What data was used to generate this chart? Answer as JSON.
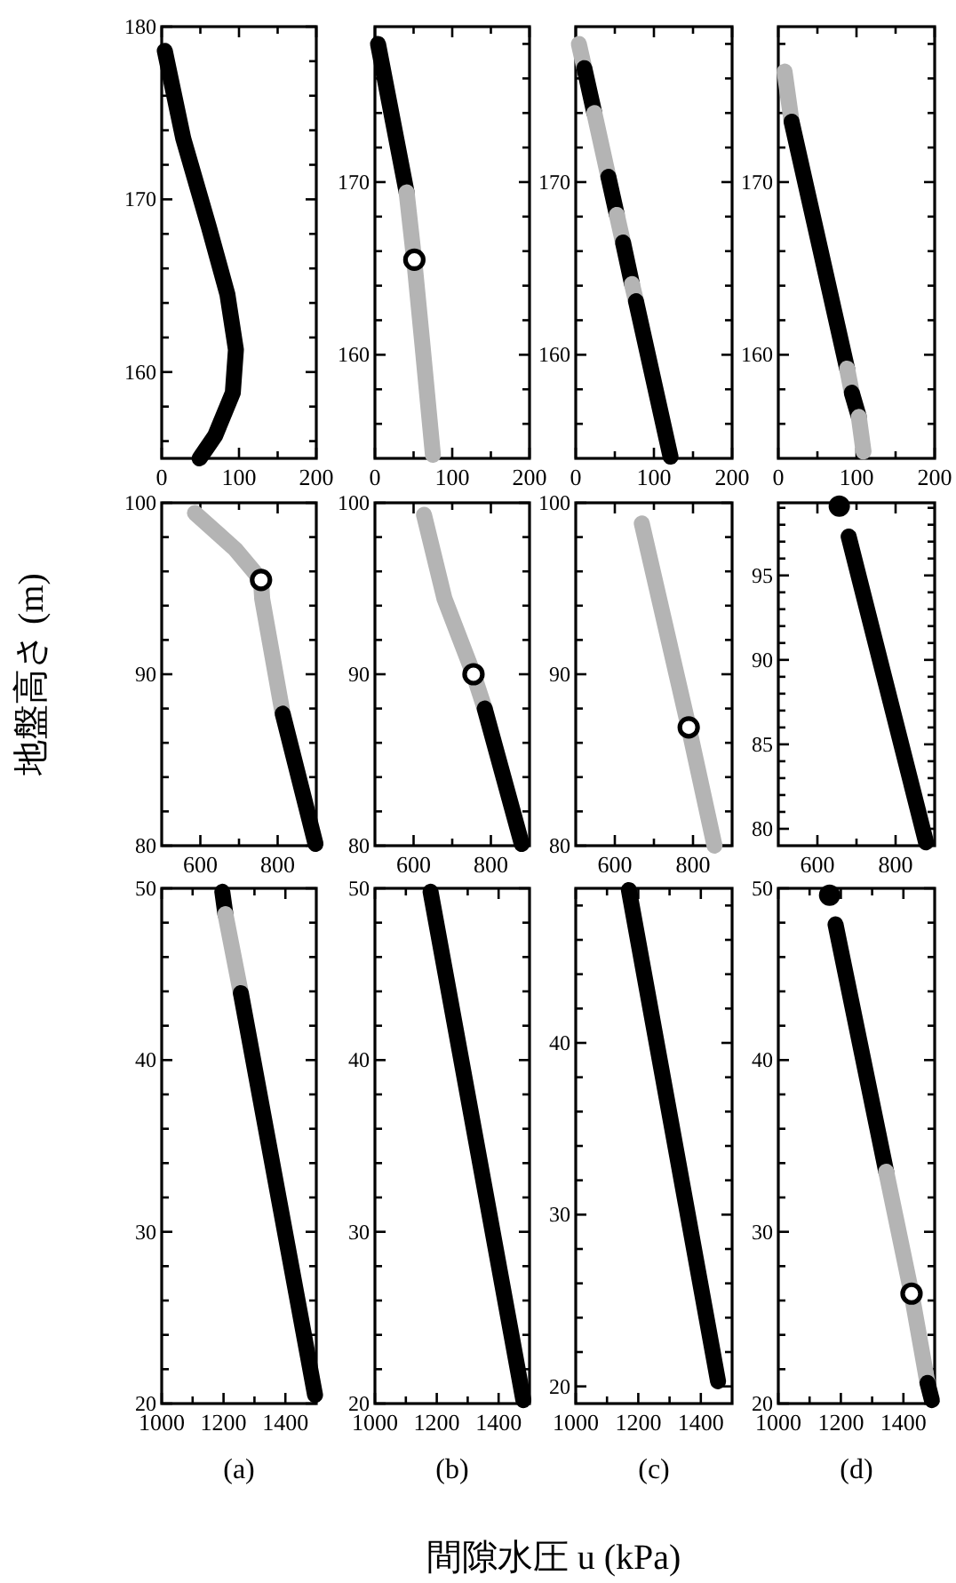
{
  "chart_data": [
    {
      "type": "line",
      "xlim": [
        0,
        200
      ],
      "ylim": [
        155,
        180
      ],
      "xticks": [
        0,
        {
          "value": 50,
          "label": null
        },
        100,
        {
          "value": 150,
          "label": null
        },
        200
      ],
      "yticks": [
        {
          "value": 156,
          "label": null
        },
        {
          "value": 158,
          "label": null
        },
        160,
        {
          "value": 162,
          "label": null
        },
        {
          "value": 164,
          "label": null
        },
        {
          "value": 166,
          "label": null
        },
        {
          "value": 168,
          "label": null
        },
        170,
        {
          "value": 172,
          "label": null
        },
        {
          "value": 174,
          "label": null
        },
        {
          "value": 176,
          "label": null
        },
        {
          "value": 178,
          "label": null
        },
        180
      ],
      "series": [
        {
          "color": "#000000",
          "x": [
            4,
            28,
            61,
            85,
            96,
            92,
            69,
            49
          ],
          "values": [
            178.6,
            173.5,
            168.4,
            164.5,
            161.3,
            158.8,
            156.3,
            155.0
          ]
        }
      ]
    },
    {
      "type": "line",
      "xlim": [
        0,
        200
      ],
      "ylim": [
        154,
        179
      ],
      "xticks": [
        0,
        {
          "value": 50,
          "label": null
        },
        100,
        {
          "value": 150,
          "label": null
        },
        200
      ],
      "yticks": [
        {
          "value": 156,
          "label": null
        },
        {
          "value": 158,
          "label": null
        },
        160,
        {
          "value": 162,
          "label": null
        },
        {
          "value": 164,
          "label": null
        },
        {
          "value": 166,
          "label": null
        },
        {
          "value": 168,
          "label": null
        },
        170,
        {
          "value": 172,
          "label": null
        },
        {
          "value": 174,
          "label": null
        },
        {
          "value": 176,
          "label": null
        },
        {
          "value": 178,
          "label": null
        }
      ],
      "series": [
        {
          "color": "#000000",
          "x": [
            4,
            41
          ],
          "values": [
            178.0,
            169.4
          ]
        },
        {
          "color": "#b4b4b4",
          "x": [
            41,
            51,
            61,
            75
          ],
          "values": [
            169.4,
            165.4,
            160.8,
            154.2
          ]
        },
        {
          "type": "scatter",
          "marker": "circle",
          "color": "#000000",
          "x": [
            51
          ],
          "values": [
            165.5
          ]
        }
      ]
    },
    {
      "type": "line",
      "xlim": [
        0,
        200
      ],
      "ylim": [
        154,
        179
      ],
      "xticks": [
        0,
        {
          "value": 50,
          "label": null
        },
        100,
        {
          "value": 150,
          "label": null
        },
        200
      ],
      "yticks": [
        {
          "value": 156,
          "label": null
        },
        {
          "value": 158,
          "label": null
        },
        160,
        {
          "value": 162,
          "label": null
        },
        {
          "value": 164,
          "label": null
        },
        {
          "value": 166,
          "label": null
        },
        {
          "value": 168,
          "label": null
        },
        170,
        {
          "value": 172,
          "label": null
        },
        {
          "value": 174,
          "label": null
        },
        {
          "value": 176,
          "label": null
        },
        {
          "value": 178,
          "label": null
        }
      ],
      "series": [
        {
          "color": "#b4b4b4",
          "x": [
            4,
            11.0
          ],
          "values": [
            178.0,
            176.6
          ]
        },
        {
          "color": "#000000",
          "x": [
            11.0,
            23.8
          ],
          "values": [
            176.6,
            174.0
          ]
        },
        {
          "color": "#b4b4b4",
          "x": [
            23.8,
            41.8
          ],
          "values": [
            174.0,
            170.3
          ]
        },
        {
          "color": "#000000",
          "x": [
            41.8,
            52.6
          ],
          "values": [
            170.3,
            168.1
          ]
        },
        {
          "color": "#b4b4b4",
          "x": [
            52.6,
            60.5
          ],
          "values": [
            168.1,
            166.5
          ]
        },
        {
          "color": "#000000",
          "x": [
            60.5,
            71.9
          ],
          "values": [
            166.5,
            164.1
          ]
        },
        {
          "color": "#b4b4b4",
          "x": [
            71.9,
            77.1
          ],
          "values": [
            164.1,
            163.1
          ]
        },
        {
          "color": "#000000",
          "x": [
            77.1,
            121.2
          ],
          "values": [
            163.1,
            154.1
          ]
        }
      ]
    },
    {
      "type": "line",
      "xlim": [
        0,
        200
      ],
      "ylim": [
        154,
        179
      ],
      "xticks": [
        0,
        {
          "value": 50,
          "label": null
        },
        100,
        {
          "value": 150,
          "label": null
        },
        200
      ],
      "yticks": [
        {
          "value": 156,
          "label": null
        },
        {
          "value": 158,
          "label": null
        },
        160,
        {
          "value": 162,
          "label": null
        },
        {
          "value": 164,
          "label": null
        },
        {
          "value": 166,
          "label": null
        },
        {
          "value": 168,
          "label": null
        },
        170,
        {
          "value": 172,
          "label": null
        },
        {
          "value": 174,
          "label": null
        },
        {
          "value": 176,
          "label": null
        },
        {
          "value": 178,
          "label": null
        }
      ],
      "series": [
        {
          "color": "#b4b4b4",
          "x": [
            8,
            17
          ],
          "values": [
            176.4,
            173.5
          ]
        },
        {
          "color": "#000000",
          "x": [
            17,
            88
          ],
          "values": [
            173.5,
            159.2
          ]
        },
        {
          "color": "#b4b4b4",
          "x": [
            88,
            94
          ],
          "values": [
            159.2,
            157.8
          ]
        },
        {
          "color": "#000000",
          "x": [
            94,
            103
          ],
          "values": [
            157.8,
            156.4
          ]
        },
        {
          "color": "#b4b4b4",
          "x": [
            103,
            109
          ],
          "values": [
            156.4,
            154.4
          ]
        }
      ]
    },
    {
      "type": "line",
      "xlim": [
        500,
        900
      ],
      "ylim": [
        80,
        100
      ],
      "ylabel": "地盤高さ (m)",
      "xticks": [
        600,
        {
          "value": 700,
          "label": null
        },
        800
      ],
      "yticks": [
        80,
        {
          "value": 82,
          "label": null
        },
        {
          "value": 84,
          "label": null
        },
        {
          "value": 86,
          "label": null
        },
        {
          "value": 88,
          "label": null
        },
        90,
        {
          "value": 92,
          "label": null
        },
        {
          "value": 94,
          "label": null
        },
        {
          "value": 96,
          "label": null
        },
        {
          "value": 98,
          "label": null
        },
        100
      ],
      "series": [
        {
          "color": "#b4b4b4",
          "x": [
            586,
            690,
            757,
            760,
            813
          ],
          "values": [
            99.4,
            97.3,
            95.5,
            94.4,
            87.7
          ]
        },
        {
          "color": "#000000",
          "x": [
            813,
            898
          ],
          "values": [
            87.7,
            80.1
          ]
        },
        {
          "type": "scatter",
          "marker": "circle",
          "color": "#000000",
          "x": [
            757
          ],
          "values": [
            95.5
          ]
        }
      ]
    },
    {
      "type": "line",
      "xlim": [
        500,
        900
      ],
      "ylim": [
        80,
        100
      ],
      "xticks": [
        600,
        {
          "value": 700,
          "label": null
        },
        800
      ],
      "yticks": [
        80,
        {
          "value": 82,
          "label": null
        },
        {
          "value": 84,
          "label": null
        },
        {
          "value": 86,
          "label": null
        },
        {
          "value": 88,
          "label": null
        },
        90,
        {
          "value": 92,
          "label": null
        },
        {
          "value": 94,
          "label": null
        },
        {
          "value": 96,
          "label": null
        },
        {
          "value": 98,
          "label": null
        },
        100
      ],
      "series": [
        {
          "color": "#b4b4b4",
          "x": [
            627,
            680,
            755,
            784
          ],
          "values": [
            99.3,
            94.4,
            90.0,
            88.0
          ]
        },
        {
          "color": "#000000",
          "x": [
            784,
            880
          ],
          "values": [
            88.0,
            80.1
          ]
        },
        {
          "type": "scatter",
          "marker": "circle",
          "color": "#000000",
          "x": [
            755
          ],
          "values": [
            90.0
          ]
        }
      ]
    },
    {
      "type": "line",
      "xlim": [
        500,
        900
      ],
      "ylim": [
        80,
        100
      ],
      "xticks": [
        600,
        {
          "value": 700,
          "label": null
        },
        800
      ],
      "yticks": [
        80,
        {
          "value": 82,
          "label": null
        },
        {
          "value": 84,
          "label": null
        },
        {
          "value": 86,
          "label": null
        },
        {
          "value": 88,
          "label": null
        },
        90,
        {
          "value": 92,
          "label": null
        },
        {
          "value": 94,
          "label": null
        },
        {
          "value": 96,
          "label": null
        },
        {
          "value": 98,
          "label": null
        },
        100
      ],
      "series": [
        {
          "color": "#b4b4b4",
          "x": [
            669,
            789,
            855
          ],
          "values": [
            98.8,
            86.9,
            80.0
          ]
        },
        {
          "type": "scatter",
          "marker": "circle",
          "color": "#000000",
          "x": [
            789
          ],
          "values": [
            86.9
          ]
        }
      ]
    },
    {
      "type": "line",
      "xlim": [
        500,
        900
      ],
      "ylim": [
        79,
        99.3
      ],
      "xticks": [
        600,
        {
          "value": 700,
          "label": null
        },
        800
      ],
      "yticks": [
        80,
        {
          "value": 81,
          "label": null
        },
        {
          "value": 82,
          "label": null
        },
        {
          "value": 83,
          "label": null
        },
        {
          "value": 84,
          "label": null
        },
        85,
        {
          "value": 86,
          "label": null
        },
        {
          "value": 87,
          "label": null
        },
        {
          "value": 88,
          "label": null
        },
        {
          "value": 89,
          "label": null
        },
        90,
        {
          "value": 91,
          "label": null
        },
        {
          "value": 92,
          "label": null
        },
        {
          "value": 93,
          "label": null
        },
        {
          "value": 94,
          "label": null
        },
        95,
        {
          "value": 96,
          "label": null
        },
        {
          "value": 97,
          "label": null
        },
        {
          "value": 98,
          "label": null
        },
        {
          "value": 99,
          "label": null
        }
      ],
      "series": [
        {
          "type": "line",
          "marker": "circle",
          "color": "#000000",
          "x": [
            656
          ],
          "values": [
            99.1
          ]
        },
        {
          "color": "#000000",
          "x": [
            680,
            878
          ],
          "values": [
            97.3,
            79.2
          ]
        }
      ]
    },
    {
      "type": "line",
      "xlim": [
        1000,
        1500
      ],
      "ylim": [
        20,
        50
      ],
      "annotations": [
        "(a)"
      ],
      "xticks": [
        1000,
        {
          "value": 1100,
          "label": null
        },
        1200,
        {
          "value": 1300,
          "label": null
        },
        1400
      ],
      "yticks": [
        20,
        {
          "value": 22,
          "label": null
        },
        {
          "value": 24,
          "label": null
        },
        {
          "value": 26,
          "label": null
        },
        {
          "value": 28,
          "label": null
        },
        30,
        {
          "value": 32,
          "label": null
        },
        {
          "value": 34,
          "label": null
        },
        {
          "value": 36,
          "label": null
        },
        {
          "value": 38,
          "label": null
        },
        40,
        {
          "value": 42,
          "label": null
        },
        {
          "value": 44,
          "label": null
        },
        {
          "value": 46,
          "label": null
        },
        {
          "value": 48,
          "label": null
        },
        50
      ],
      "series": [
        {
          "color": "#000000",
          "x": [
            1196,
            1206
          ],
          "values": [
            49.8,
            48.5
          ]
        },
        {
          "color": "#b4b4b4",
          "x": [
            1206,
            1256
          ],
          "values": [
            48.5,
            43.9
          ]
        },
        {
          "color": "#000000",
          "x": [
            1256,
            1496
          ],
          "values": [
            43.9,
            20.5
          ]
        }
      ]
    },
    {
      "type": "line",
      "xlim": [
        1000,
        1500
      ],
      "ylim": [
        20,
        50
      ],
      "annotations": [
        "(b)"
      ],
      "xlabel": "間隙水圧 u (kPa)",
      "xticks": [
        1000,
        {
          "value": 1100,
          "label": null
        },
        1200,
        {
          "value": 1300,
          "label": null
        },
        1400
      ],
      "yticks": [
        20,
        {
          "value": 22,
          "label": null
        },
        {
          "value": 24,
          "label": null
        },
        {
          "value": 26,
          "label": null
        },
        {
          "value": 28,
          "label": null
        },
        30,
        {
          "value": 32,
          "label": null
        },
        {
          "value": 34,
          "label": null
        },
        {
          "value": 36,
          "label": null
        },
        {
          "value": 38,
          "label": null
        },
        40,
        {
          "value": 42,
          "label": null
        },
        {
          "value": 44,
          "label": null
        },
        {
          "value": 46,
          "label": null
        },
        {
          "value": 48,
          "label": null
        },
        50
      ],
      "series": [
        {
          "color": "#000000",
          "x": [
            1180,
            1480
          ],
          "values": [
            49.8,
            20.2
          ]
        }
      ]
    },
    {
      "type": "line",
      "xlim": [
        1000,
        1500
      ],
      "ylim": [
        19,
        49
      ],
      "annotations": [
        "(c)"
      ],
      "xticks": [
        1000,
        {
          "value": 1100,
          "label": null
        },
        1200,
        {
          "value": 1300,
          "label": null
        },
        1400
      ],
      "yticks": [
        20,
        {
          "value": 22,
          "label": null
        },
        {
          "value": 24,
          "label": null
        },
        {
          "value": 26,
          "label": null
        },
        {
          "value": 28,
          "label": null
        },
        30,
        {
          "value": 32,
          "label": null
        },
        {
          "value": 34,
          "label": null
        },
        {
          "value": 36,
          "label": null
        },
        {
          "value": 38,
          "label": null
        },
        40,
        {
          "value": 42,
          "label": null
        },
        {
          "value": 44,
          "label": null
        },
        {
          "value": 46,
          "label": null
        },
        {
          "value": 48,
          "label": null
        }
      ],
      "series": [
        {
          "color": "#000000",
          "x": [
            1170,
            1455
          ],
          "values": [
            48.9,
            20.3
          ]
        }
      ]
    },
    {
      "type": "line",
      "xlim": [
        1000,
        1500
      ],
      "ylim": [
        20,
        50
      ],
      "annotations": [
        "(d)"
      ],
      "xticks": [
        1000,
        {
          "value": 1100,
          "label": null
        },
        1200,
        {
          "value": 1300,
          "label": null
        },
        1400
      ],
      "yticks": [
        20,
        {
          "value": 22,
          "label": null
        },
        {
          "value": 24,
          "label": null
        },
        {
          "value": 26,
          "label": null
        },
        {
          "value": 28,
          "label": null
        },
        30,
        {
          "value": 32,
          "label": null
        },
        {
          "value": 34,
          "label": null
        },
        {
          "value": 36,
          "label": null
        },
        {
          "value": 38,
          "label": null
        },
        40,
        {
          "value": 42,
          "label": null
        },
        {
          "value": 44,
          "label": null
        },
        {
          "value": 46,
          "label": null
        },
        {
          "value": 48,
          "label": null
        },
        50
      ],
      "series": [
        {
          "type": "line",
          "marker": "circle",
          "color": "#000000",
          "x": [
            1164
          ],
          "values": [
            49.6
          ]
        },
        {
          "color": "#000000",
          "x": [
            1183,
            1345
          ],
          "values": [
            47.9,
            33.5
          ]
        },
        {
          "color": "#b4b4b4",
          "x": [
            1345,
            1426,
            1477
          ],
          "values": [
            33.5,
            26.4,
            21.2
          ]
        },
        {
          "color": "#000000",
          "x": [
            1477,
            1491
          ],
          "values": [
            21.2,
            20.2
          ]
        },
        {
          "type": "scatter",
          "marker": "circle",
          "color": "#000000",
          "x": [
            1426
          ],
          "values": [
            26.4
          ]
        }
      ]
    }
  ]
}
